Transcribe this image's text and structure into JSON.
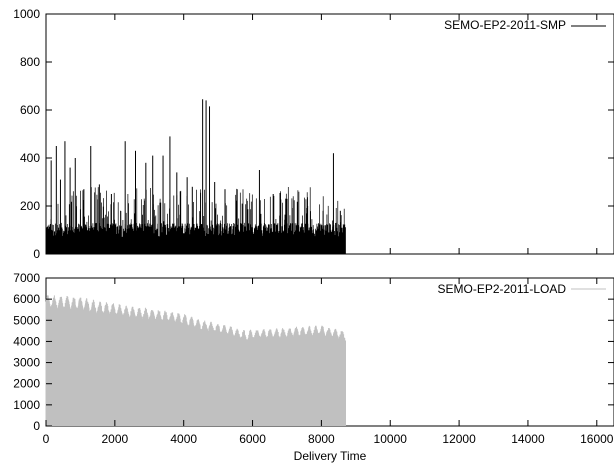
{
  "chart_data": [
    {
      "type": "line",
      "title": "",
      "xlabel": "",
      "ylabel": "",
      "xlim": [
        0,
        16500
      ],
      "ylim": [
        0,
        1000
      ],
      "xticks": [
        0,
        2000,
        4000,
        6000,
        8000,
        10000,
        12000,
        14000,
        16000
      ],
      "yticks": [
        0,
        200,
        400,
        600,
        800,
        1000
      ],
      "ytick_labels": [
        "0",
        "200",
        "400",
        "600",
        "800",
        "1000"
      ],
      "grid": false,
      "legend_position": "top-right",
      "series": [
        {
          "name": "SEMO-EP2-2011-SMP",
          "color": "#000000",
          "style": "impulses",
          "x_range": [
            0,
            8700
          ],
          "baseline_range": [
            30,
            70
          ],
          "spikes": [
            {
              "x": 150,
              "y": 390
            },
            {
              "x": 300,
              "y": 450
            },
            {
              "x": 420,
              "y": 310
            },
            {
              "x": 550,
              "y": 470
            },
            {
              "x": 700,
              "y": 360
            },
            {
              "x": 850,
              "y": 400
            },
            {
              "x": 1100,
              "y": 270
            },
            {
              "x": 1300,
              "y": 450
            },
            {
              "x": 1550,
              "y": 290
            },
            {
              "x": 1900,
              "y": 250
            },
            {
              "x": 2300,
              "y": 470
            },
            {
              "x": 2600,
              "y": 430
            },
            {
              "x": 2900,
              "y": 380
            },
            {
              "x": 3100,
              "y": 410
            },
            {
              "x": 3400,
              "y": 410
            },
            {
              "x": 3600,
              "y": 490
            },
            {
              "x": 3800,
              "y": 340
            },
            {
              "x": 4100,
              "y": 320
            },
            {
              "x": 4250,
              "y": 280
            },
            {
              "x": 4550,
              "y": 645
            },
            {
              "x": 4650,
              "y": 640
            },
            {
              "x": 4750,
              "y": 615
            },
            {
              "x": 4900,
              "y": 300
            },
            {
              "x": 5200,
              "y": 270
            },
            {
              "x": 5700,
              "y": 210
            },
            {
              "x": 6200,
              "y": 350
            },
            {
              "x": 6600,
              "y": 250
            },
            {
              "x": 7000,
              "y": 230
            },
            {
              "x": 7600,
              "y": 200
            },
            {
              "x": 8050,
              "y": 180
            },
            {
              "x": 8350,
              "y": 420
            },
            {
              "x": 8550,
              "y": 180
            }
          ]
        }
      ]
    },
    {
      "type": "area",
      "title": "",
      "xlabel": "Delivery Time",
      "ylabel": "",
      "xlim": [
        0,
        16500
      ],
      "ylim": [
        0,
        7000
      ],
      "xticks": [
        0,
        2000,
        4000,
        6000,
        8000,
        10000,
        12000,
        14000,
        16000
      ],
      "xtick_labels": [
        "0",
        "2000",
        "4000",
        "6000",
        "8000",
        "10000",
        "12000",
        "14000",
        "16000"
      ],
      "yticks": [
        0,
        1000,
        2000,
        3000,
        4000,
        5000,
        6000,
        7000
      ],
      "ytick_labels": [
        "0",
        "1000",
        "2000",
        "3000",
        "4000",
        "5000",
        "6000",
        "7000"
      ],
      "grid": false,
      "legend_position": "top-right",
      "series": [
        {
          "name": "SEMO-EP2-2011-LOAD",
          "color": "#c0c0c0",
          "style": "impulses",
          "x_range": [
            0,
            8700
          ],
          "envelope": {
            "x": [
              0,
              500,
              1000,
              1500,
              2000,
              2500,
              3000,
              3500,
              4000,
              4500,
              5000,
              5500,
              5800,
              6000,
              6500,
              7000,
              7500,
              8000,
              8500,
              8700
            ],
            "peak": [
              6150,
              6100,
              6050,
              5850,
              5750,
              5600,
              5500,
              5400,
              5250,
              4950,
              4800,
              4600,
              4450,
              4500,
              4550,
              4600,
              4650,
              4700,
              4500,
              4450
            ],
            "trough": [
              5000,
              4900,
              4850,
              4700,
              4650,
              4550,
              4500,
              4400,
              4300,
              4100,
              3950,
              3800,
              3450,
              3650,
              3700,
              3750,
              3800,
              3850,
              3700,
              3650
            ]
          }
        }
      ]
    }
  ]
}
